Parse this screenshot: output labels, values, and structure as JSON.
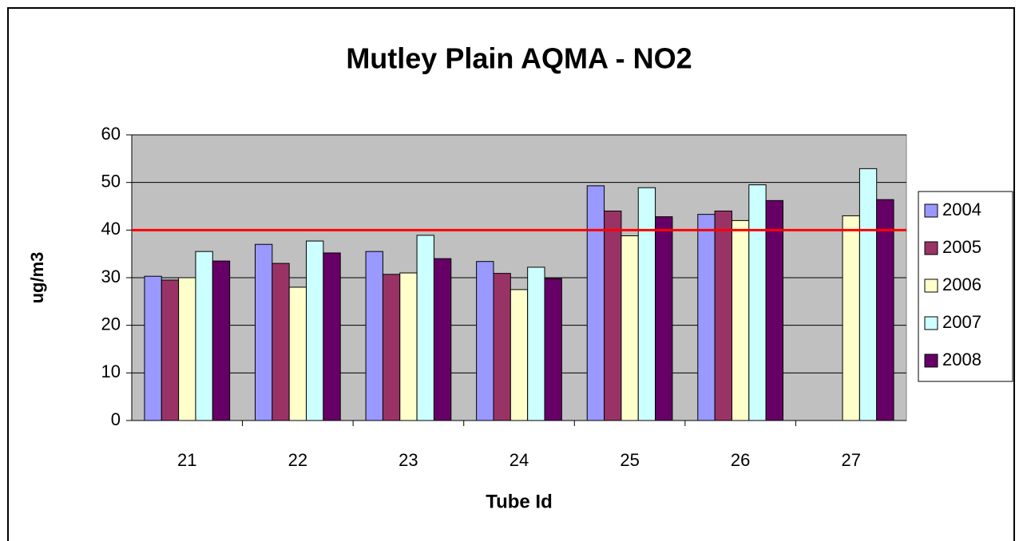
{
  "chart_data": {
    "type": "bar",
    "title": "Mutley Plain AQMA - NO2",
    "x_label": "Tube Id",
    "y_label": "ug/m3",
    "categories": [
      "21",
      "22",
      "23",
      "24",
      "25",
      "26",
      "27"
    ],
    "series": [
      {
        "name": "2004",
        "color": "#9999ff",
        "values": [
          30.3,
          37,
          35.5,
          33.4,
          49.3,
          43.3,
          null
        ]
      },
      {
        "name": "2005",
        "color": "#993366",
        "values": [
          29.5,
          33,
          30.7,
          30.9,
          44,
          44,
          null
        ]
      },
      {
        "name": "2006",
        "color": "#ffffcc",
        "values": [
          30,
          28,
          31,
          27.5,
          38.8,
          42,
          43
        ]
      },
      {
        "name": "2007",
        "color": "#ccffff",
        "values": [
          35.5,
          37.7,
          38.9,
          32.2,
          48.9,
          49.5,
          52.9
        ]
      },
      {
        "name": "2008",
        "color": "#660066",
        "values": [
          33.5,
          35.2,
          34,
          29.8,
          42.8,
          46.2,
          46.4
        ]
      }
    ],
    "reference_line": {
      "value": 40,
      "color": "#ff0000"
    },
    "ylim": [
      0,
      60
    ],
    "yticks": [
      0,
      10,
      20,
      30,
      40,
      50,
      60
    ],
    "grid": true,
    "plot_background": "#c0c0c0",
    "legend": "right"
  }
}
